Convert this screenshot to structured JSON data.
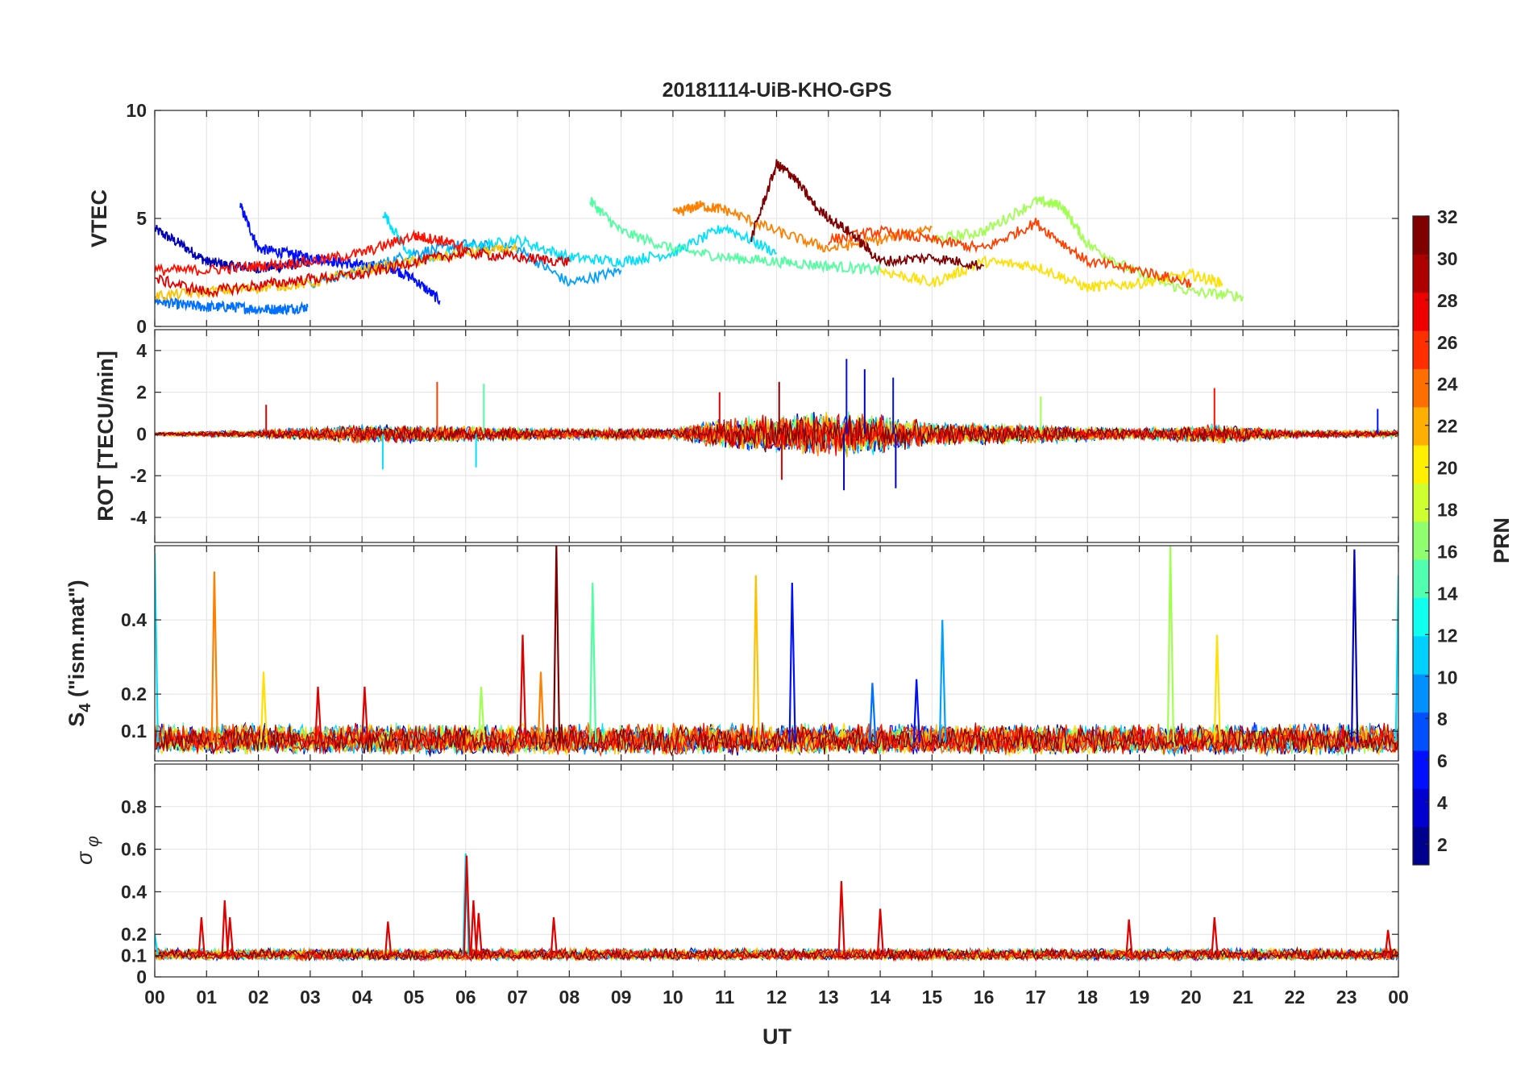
{
  "chart_data": [
    {
      "type": "line",
      "panel": "vtec",
      "title": "20181114-UiB-KHO-GPS",
      "ylabel": "VTEC",
      "ylim": [
        0,
        10
      ],
      "yticks": [
        0,
        5,
        10
      ],
      "xlim": [
        0,
        24
      ],
      "grid": true,
      "series": [
        {
          "prn": 2,
          "color": "#0000b7",
          "x": [
            0.0,
            0.5,
            1.0,
            1.5,
            2.0,
            2.5,
            3.0
          ],
          "y": [
            4.5,
            3.8,
            3.0,
            2.8,
            2.7,
            2.8,
            3.0
          ]
        },
        {
          "prn": 4,
          "color": "#0010ff",
          "x": [
            1.65,
            2.0,
            2.5,
            3.0,
            3.5,
            4.0,
            4.5,
            5.0,
            5.5
          ],
          "y": [
            5.6,
            3.6,
            3.4,
            3.2,
            3.0,
            2.8,
            2.8,
            2.2,
            1.2
          ]
        },
        {
          "prn": 8,
          "color": "#0070ff",
          "x": [
            0.0,
            0.5,
            1.0,
            1.5,
            2.0,
            2.5,
            2.95
          ],
          "y": [
            1.2,
            1.0,
            0.9,
            0.9,
            0.8,
            0.8,
            0.9
          ]
        },
        {
          "prn": 10,
          "color": "#00a0ff",
          "x": [
            3.0,
            4.0,
            5.0,
            6.0,
            7.0,
            8.0,
            9.0
          ],
          "y": [
            2.0,
            2.6,
            3.4,
            3.8,
            3.6,
            2.0,
            2.6
          ]
        },
        {
          "prn": 12,
          "color": "#00e0ff",
          "x": [
            4.4,
            5.0,
            6.0,
            7.0,
            8.0,
            9.0,
            10.0,
            11.0,
            12.0
          ],
          "y": [
            5.3,
            3.0,
            3.6,
            4.0,
            3.2,
            3.0,
            3.4,
            4.6,
            3.4
          ]
        },
        {
          "prn": 16,
          "color": "#50ff9f",
          "x": [
            8.4,
            9.0,
            10.0,
            11.0,
            12.0,
            13.0,
            14.0
          ],
          "y": [
            5.8,
            4.4,
            3.6,
            3.2,
            3.0,
            2.8,
            2.6
          ]
        },
        {
          "prn": 18,
          "color": "#a0ff50",
          "x": [
            15.0,
            16.0,
            17.0,
            17.5,
            18.0,
            19.0,
            20.0,
            21.0
          ],
          "y": [
            4.0,
            4.4,
            5.8,
            5.6,
            3.8,
            2.4,
            1.6,
            1.4
          ]
        },
        {
          "prn": 20,
          "color": "#ffe000",
          "x": [
            14.0,
            15.0,
            16.0,
            17.0,
            18.0,
            19.0,
            20.0,
            20.6
          ],
          "y": [
            2.6,
            2.0,
            3.0,
            2.8,
            1.8,
            2.0,
            2.4,
            2.0
          ]
        },
        {
          "prn": 22,
          "color": "#ffc000",
          "x": [
            0.0,
            1.0,
            2.0,
            3.0,
            4.0,
            5.0,
            6.0,
            7.0
          ],
          "y": [
            1.4,
            1.6,
            1.8,
            2.0,
            2.6,
            3.0,
            3.4,
            3.6
          ]
        },
        {
          "prn": 24,
          "color": "#ff8000",
          "x": [
            10.0,
            10.5,
            11.0,
            12.0,
            13.0,
            14.0,
            15.0
          ],
          "y": [
            5.2,
            5.6,
            5.4,
            4.4,
            3.6,
            4.0,
            4.6
          ]
        },
        {
          "prn": 26,
          "color": "#ff4000",
          "x": [
            13.0,
            14.0,
            15.0,
            16.0,
            17.0,
            18.0,
            19.0,
            20.0
          ],
          "y": [
            4.0,
            4.4,
            4.0,
            3.6,
            4.8,
            3.0,
            2.6,
            2.0
          ]
        },
        {
          "prn": 28,
          "color": "#ff1000",
          "x": [
            0.0,
            1.0,
            2.0,
            3.0,
            4.0,
            5.0,
            5.5,
            6.0
          ],
          "y": [
            2.6,
            2.6,
            2.8,
            3.0,
            3.4,
            4.2,
            4.0,
            3.6
          ]
        },
        {
          "prn": 30,
          "color": "#df0000",
          "x": [
            0.0,
            1.0,
            2.0,
            3.0,
            4.0,
            5.0,
            6.0,
            7.0,
            8.0
          ],
          "y": [
            2.2,
            1.6,
            1.9,
            2.2,
            2.4,
            3.0,
            3.4,
            3.2,
            3.0
          ]
        },
        {
          "prn": 32,
          "color": "#7f0000",
          "x": [
            11.5,
            12.0,
            12.3,
            12.8,
            13.5,
            14.0,
            15.0,
            16.0
          ],
          "y": [
            4.0,
            7.5,
            7.0,
            5.4,
            4.2,
            3.0,
            3.2,
            2.8
          ]
        }
      ]
    },
    {
      "type": "line",
      "panel": "rot",
      "ylabel": "ROT [TECU/min]",
      "ylim": [
        -5.2,
        5.0
      ],
      "yticks": [
        -4,
        -2,
        0,
        2,
        4
      ],
      "xlim": [
        0,
        24
      ],
      "grid": true,
      "noise_envelope": [
        {
          "x": 0.0,
          "amp": 0.1
        },
        {
          "x": 2.0,
          "amp": 0.2
        },
        {
          "x": 4.0,
          "amp": 0.5
        },
        {
          "x": 6.0,
          "amp": 0.4
        },
        {
          "x": 8.0,
          "amp": 0.3
        },
        {
          "x": 10.0,
          "amp": 0.3
        },
        {
          "x": 11.0,
          "amp": 0.8
        },
        {
          "x": 12.0,
          "amp": 1.0
        },
        {
          "x": 13.0,
          "amp": 1.2
        },
        {
          "x": 14.0,
          "amp": 1.0
        },
        {
          "x": 15.0,
          "amp": 0.6
        },
        {
          "x": 17.0,
          "amp": 0.5
        },
        {
          "x": 19.0,
          "amp": 0.3
        },
        {
          "x": 20.5,
          "amp": 0.5
        },
        {
          "x": 22.0,
          "amp": 0.2
        },
        {
          "x": 24.0,
          "amp": 0.2
        }
      ],
      "spikes": [
        {
          "x": 2.15,
          "y": 1.4,
          "color": "#df0000"
        },
        {
          "x": 4.4,
          "y": -1.7,
          "color": "#00e0ff"
        },
        {
          "x": 5.45,
          "y": 2.5,
          "color": "#ff4000"
        },
        {
          "x": 6.35,
          "y": 2.4,
          "color": "#50ff9f"
        },
        {
          "x": 6.2,
          "y": -1.6,
          "color": "#00e0ff"
        },
        {
          "x": 10.9,
          "y": 2.0,
          "color": "#df0000"
        },
        {
          "x": 12.05,
          "y": 2.5,
          "color": "#7f0000"
        },
        {
          "x": 12.1,
          "y": -2.2,
          "color": "#df0000"
        },
        {
          "x": 13.35,
          "y": 3.6,
          "color": "#0010ff"
        },
        {
          "x": 13.3,
          "y": -2.7,
          "color": "#0000b7"
        },
        {
          "x": 13.7,
          "y": 3.1,
          "color": "#0000b7"
        },
        {
          "x": 14.25,
          "y": 2.7,
          "color": "#0010ff"
        },
        {
          "x": 14.3,
          "y": -2.6,
          "color": "#0000b7"
        },
        {
          "x": 17.1,
          "y": 1.8,
          "color": "#a0ff50"
        },
        {
          "x": 20.45,
          "y": 2.2,
          "color": "#ff1000"
        },
        {
          "x": 23.6,
          "y": 1.2,
          "color": "#0010ff"
        }
      ]
    },
    {
      "type": "line",
      "panel": "s4",
      "ylabel": "S4 (\"ism.mat\")",
      "ylim": [
        0.02,
        0.6
      ],
      "yticks": [
        0.1,
        0.2,
        0.4
      ],
      "ytick_labels": [
        "0.1",
        "0.2",
        "0.4"
      ],
      "xlim": [
        0,
        24
      ],
      "grid": true,
      "baseline": 0.07,
      "spikes": [
        {
          "x": 0.0,
          "y": 0.58,
          "color": "#00e0ff"
        },
        {
          "x": 1.15,
          "y": 0.53,
          "color": "#ff8000"
        },
        {
          "x": 2.1,
          "y": 0.26,
          "color": "#ffe000"
        },
        {
          "x": 3.15,
          "y": 0.22,
          "color": "#df0000"
        },
        {
          "x": 4.05,
          "y": 0.22,
          "color": "#df0000"
        },
        {
          "x": 6.3,
          "y": 0.22,
          "color": "#a0ff50"
        },
        {
          "x": 7.1,
          "y": 0.36,
          "color": "#df0000"
        },
        {
          "x": 7.45,
          "y": 0.26,
          "color": "#ff8000"
        },
        {
          "x": 7.75,
          "y": 0.6,
          "color": "#7f0000"
        },
        {
          "x": 8.45,
          "y": 0.5,
          "color": "#50ff9f"
        },
        {
          "x": 11.6,
          "y": 0.52,
          "color": "#ffc000"
        },
        {
          "x": 12.3,
          "y": 0.5,
          "color": "#0010ff"
        },
        {
          "x": 13.85,
          "y": 0.23,
          "color": "#0070ff"
        },
        {
          "x": 14.7,
          "y": 0.24,
          "color": "#0010ff"
        },
        {
          "x": 15.2,
          "y": 0.4,
          "color": "#00a0ff"
        },
        {
          "x": 19.6,
          "y": 0.6,
          "color": "#a0ff50"
        },
        {
          "x": 20.5,
          "y": 0.36,
          "color": "#ffe000"
        },
        {
          "x": 23.15,
          "y": 0.59,
          "color": "#0000b7"
        },
        {
          "x": 24.0,
          "y": 0.52,
          "color": "#00e0ff"
        }
      ]
    },
    {
      "type": "line",
      "panel": "sigma_phi",
      "ylabel": "σ φ",
      "ylim": [
        0,
        1.0
      ],
      "yticks": [
        0,
        0.1,
        0.2,
        0.4,
        0.6,
        0.8
      ],
      "ytick_labels": [
        "0",
        "0.1",
        "0.2",
        "0.4",
        "0.6",
        "0.8"
      ],
      "xlim": [
        0,
        24
      ],
      "grid": true,
      "baseline": 0.1,
      "spikes": [
        {
          "x": 0.0,
          "y": 0.2,
          "color": "#00e0ff"
        },
        {
          "x": 0.9,
          "y": 0.28,
          "color": "#df0000"
        },
        {
          "x": 1.35,
          "y": 0.36,
          "color": "#df0000"
        },
        {
          "x": 1.45,
          "y": 0.28,
          "color": "#df0000"
        },
        {
          "x": 4.5,
          "y": 0.26,
          "color": "#df0000"
        },
        {
          "x": 6.0,
          "y": 0.58,
          "color": "#00e0ff"
        },
        {
          "x": 6.02,
          "y": 0.57,
          "color": "#df0000"
        },
        {
          "x": 6.15,
          "y": 0.36,
          "color": "#df0000"
        },
        {
          "x": 6.25,
          "y": 0.3,
          "color": "#df0000"
        },
        {
          "x": 7.7,
          "y": 0.28,
          "color": "#df0000"
        },
        {
          "x": 13.25,
          "y": 0.45,
          "color": "#df0000"
        },
        {
          "x": 14.0,
          "y": 0.32,
          "color": "#df0000"
        },
        {
          "x": 18.8,
          "y": 0.27,
          "color": "#df0000"
        },
        {
          "x": 20.45,
          "y": 0.28,
          "color": "#df0000"
        },
        {
          "x": 23.8,
          "y": 0.22,
          "color": "#df0000"
        }
      ],
      "xlabel": "UT",
      "xticks": [
        0,
        1,
        2,
        3,
        4,
        5,
        6,
        7,
        8,
        9,
        10,
        11,
        12,
        13,
        14,
        15,
        16,
        17,
        18,
        19,
        20,
        21,
        22,
        23,
        24
      ],
      "xtick_labels": [
        "00",
        "01",
        "02",
        "03",
        "04",
        "05",
        "06",
        "07",
        "08",
        "09",
        "10",
        "11",
        "12",
        "13",
        "14",
        "15",
        "16",
        "17",
        "18",
        "19",
        "20",
        "21",
        "22",
        "23",
        "00"
      ]
    }
  ],
  "colorbar": {
    "label": "PRN",
    "range": [
      1,
      32
    ],
    "ticks": [
      2,
      4,
      6,
      8,
      10,
      12,
      14,
      16,
      18,
      20,
      22,
      24,
      26,
      28,
      30,
      32
    ],
    "colors": [
      "#00008f",
      "#0000cf",
      "#0010ff",
      "#0050ff",
      "#0090ff",
      "#00d0ff",
      "#10ffef",
      "#50ffaf",
      "#90ff6f",
      "#d0ff2f",
      "#ffef00",
      "#ffaf00",
      "#ff6f00",
      "#ff2f00",
      "#ef0000",
      "#af0000",
      "#800000"
    ]
  }
}
